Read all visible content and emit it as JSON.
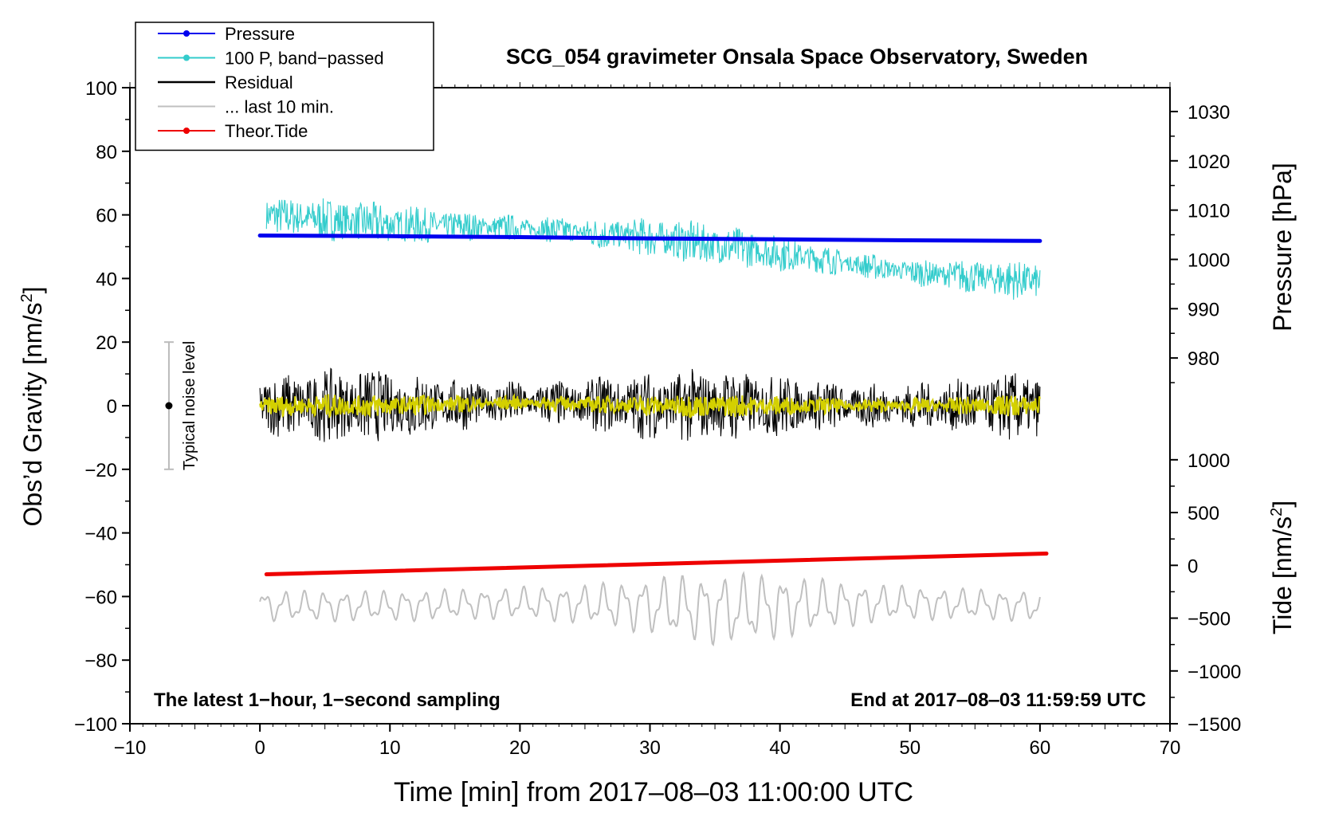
{
  "chart_data": {
    "type": "line",
    "title": "SCG_054 gravimeter Onsala Space Observatory, Sweden",
    "xlabel": "Time [min] from 2017‒08‒03 11:00:00 UTC",
    "ylabel_main": "Obs’d Gravity [nm/s",
    "ylabel_main_sup": "2",
    "ylabel_main_end": "]",
    "ylabel_pressure": "Pressure [hPa]",
    "ylabel_tide": "Tide [nm/s",
    "ylabel_tide_sup": "2",
    "ylabel_tide_end": "]",
    "xlim": [
      -10,
      70
    ],
    "ylim": [
      -100,
      100
    ],
    "x_ticks": [
      -10,
      0,
      10,
      20,
      30,
      40,
      50,
      60,
      70
    ],
    "x_tick_labels": [
      "−10",
      "0",
      "10",
      "20",
      "30",
      "40",
      "50",
      "60",
      "70"
    ],
    "y_ticks": [
      -100,
      -80,
      -60,
      -40,
      -20,
      0,
      20,
      40,
      60,
      80,
      100
    ],
    "y_tick_labels": [
      "−100",
      "−80",
      "−60",
      "−40",
      "−20",
      "0",
      "20",
      "40",
      "60",
      "80",
      "100"
    ],
    "pressure_axis": {
      "ticks": [
        980,
        990,
        1000,
        1010,
        1020,
        1030
      ],
      "tick_labels": [
        "980",
        "990",
        "1000",
        "1010",
        "1020",
        "1030"
      ],
      "map": {
        "value_a": 980,
        "gravity_a": 15,
        "value_b": 1030,
        "gravity_b": 92.5
      }
    },
    "tide_axis": {
      "ticks": [
        -1500,
        -1000,
        -500,
        0,
        500,
        1000
      ],
      "tick_labels": [
        "−1500",
        "−1000",
        "−500",
        "0",
        "500",
        "1000"
      ],
      "map": {
        "value_a": -1500,
        "gravity_a": -100,
        "value_b": 1000,
        "gravity_b": -17
      }
    },
    "legend": {
      "position": "top-left",
      "entries": [
        {
          "label": "Pressure",
          "color": "#0000ee",
          "marker": true
        },
        {
          "label": "100 P, band−passed",
          "color": "#33cccc",
          "marker": true
        },
        {
          "label": "Residual",
          "color": "#000000",
          "marker": false
        },
        {
          "label": "... last 10 min.",
          "color": "#c0c0c0",
          "marker": false
        },
        {
          "label": "Theor.Tide",
          "color": "#ee0000",
          "marker": true
        }
      ]
    },
    "noise_bar": {
      "x": -7,
      "low": -20,
      "high": 20,
      "center": 0,
      "label": "Typical noise level"
    },
    "annotations": {
      "left": "The latest 1−hour, 1−second sampling",
      "right": "End at 2017‒08‒03 11:59:59 UTC"
    },
    "series": [
      {
        "name": "Pressure",
        "color": "#0000ee",
        "shape": "line",
        "x": [
          0,
          10,
          20,
          30,
          40,
          50,
          60
        ],
        "y": [
          53.5,
          53.3,
          53.0,
          52.6,
          52.3,
          52.0,
          51.8
        ]
      },
      {
        "name": "100 P, band-passed",
        "color": "#33cccc",
        "shape": "noisy",
        "x": [
          0.5,
          10,
          20,
          30,
          40,
          50,
          60
        ],
        "y": [
          60,
          57,
          56,
          53,
          48,
          42,
          39
        ],
        "amplitude": 5.5
      },
      {
        "name": "Residual",
        "color": "#000000",
        "shape": "noisy",
        "x": [
          0,
          10,
          20,
          30,
          40,
          50,
          60
        ],
        "y": [
          0,
          0,
          1,
          0,
          0,
          0,
          -0.5
        ],
        "amplitude": 9.5
      },
      {
        "name": "Residual (smoothed)",
        "color": "#d4d000",
        "shape": "noisy",
        "x": [
          0,
          10,
          20,
          30,
          40,
          50,
          60
        ],
        "y": [
          0,
          0,
          1,
          0,
          0,
          0,
          0
        ],
        "amplitude": 3
      },
      {
        "name": "Theor.Tide",
        "color": "#ee0000",
        "shape": "line",
        "x": [
          0.5,
          60.5
        ],
        "y": [
          -53,
          -46.5
        ]
      },
      {
        "name": "... last 10 min.",
        "color": "#c0c0c0",
        "shape": "wave",
        "x": [
          0,
          10,
          20,
          30,
          35,
          37,
          40,
          50,
          60
        ],
        "y": [
          -63,
          -63,
          -62,
          -63,
          -64,
          -64,
          -63,
          -62,
          -63
        ],
        "amplitude": 9
      }
    ]
  }
}
